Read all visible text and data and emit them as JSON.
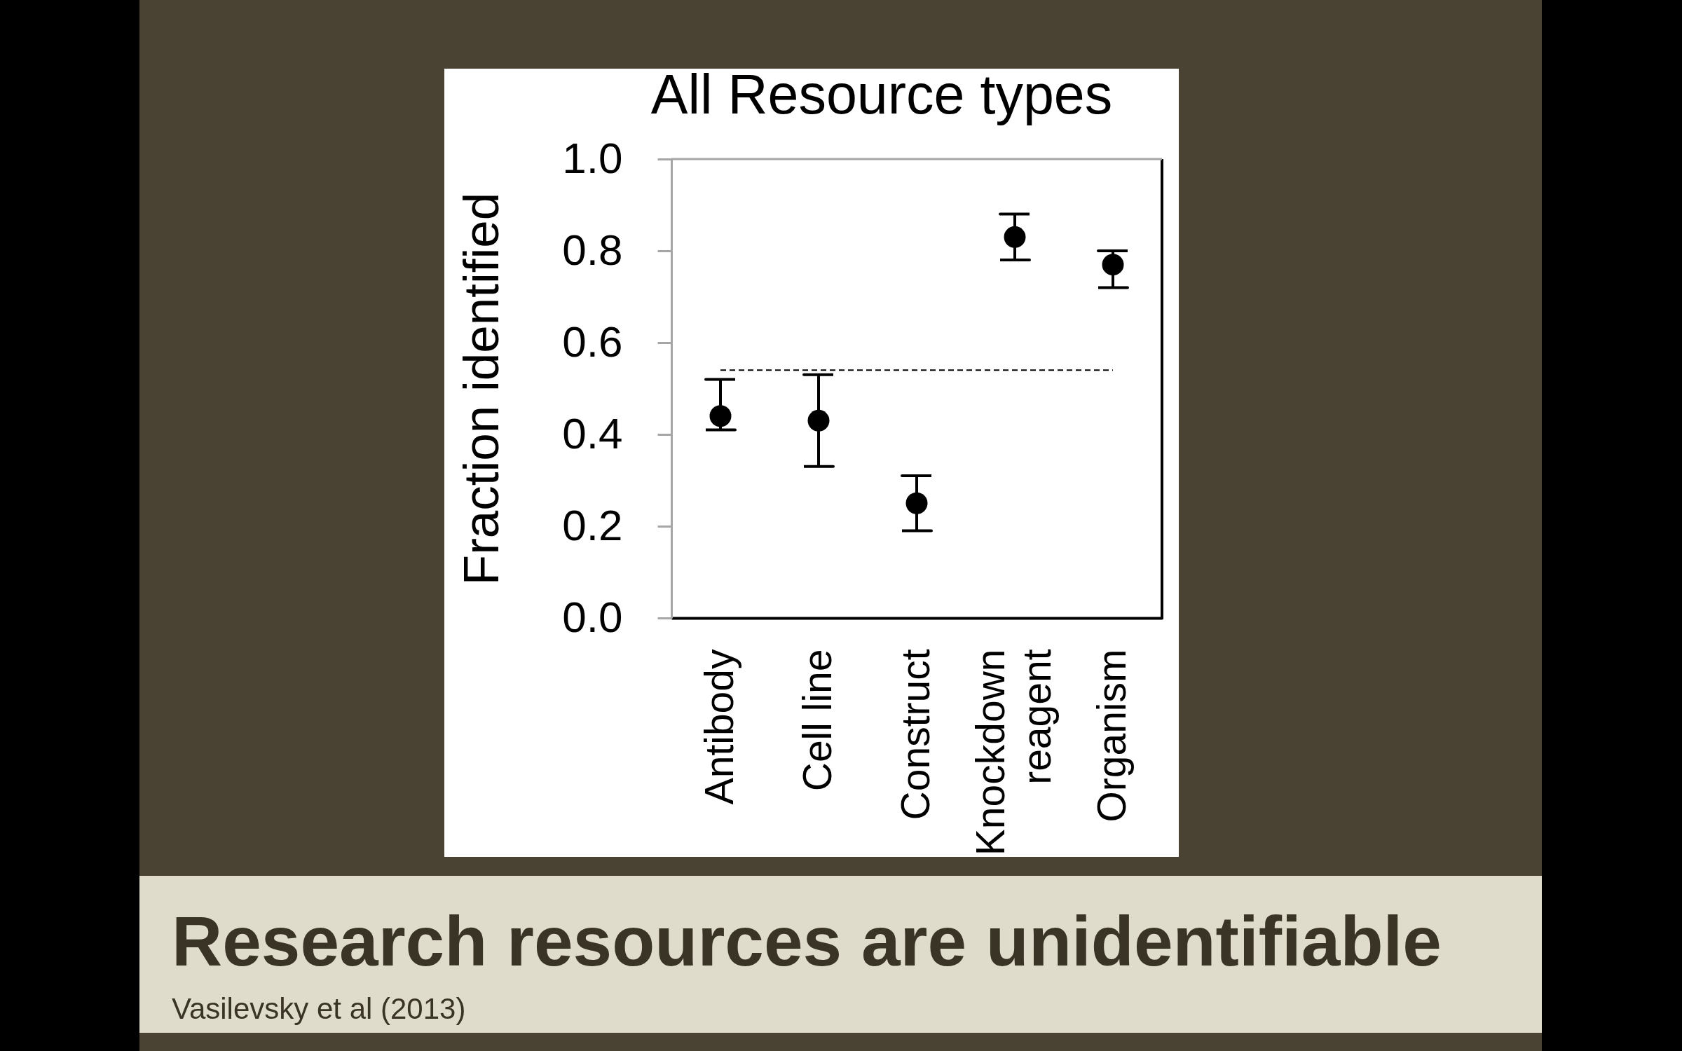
{
  "chart_data": {
    "type": "scatter",
    "title": "All Resource types",
    "ylabel": "Fraction identified",
    "categories": [
      "Antibody",
      "Cell line",
      "Construct",
      "Knockdown reagent",
      "Organism"
    ],
    "values": [
      0.44,
      0.43,
      0.25,
      0.83,
      0.77
    ],
    "errors": [
      [
        0.41,
        0.52
      ],
      [
        0.33,
        0.53
      ],
      [
        0.19,
        0.31
      ],
      [
        0.78,
        0.88
      ],
      [
        0.72,
        0.8
      ]
    ],
    "color": "#000000",
    "marker": "circle",
    "ylim": [
      0,
      1
    ],
    "yticks": [
      {
        "value": 0,
        "label": "0.0"
      },
      0.2,
      0.4,
      0.6,
      0.8,
      {
        "value": 1,
        "label": "1.0"
      }
    ],
    "ref_lines": [
      {
        "axis": "y",
        "value": 0.54,
        "line_style": "dashed",
        "color": "#000000"
      }
    ],
    "annotations": [
      "Research resources are unidentifiable",
      "Vasilevsky et al (2013)"
    ]
  }
}
